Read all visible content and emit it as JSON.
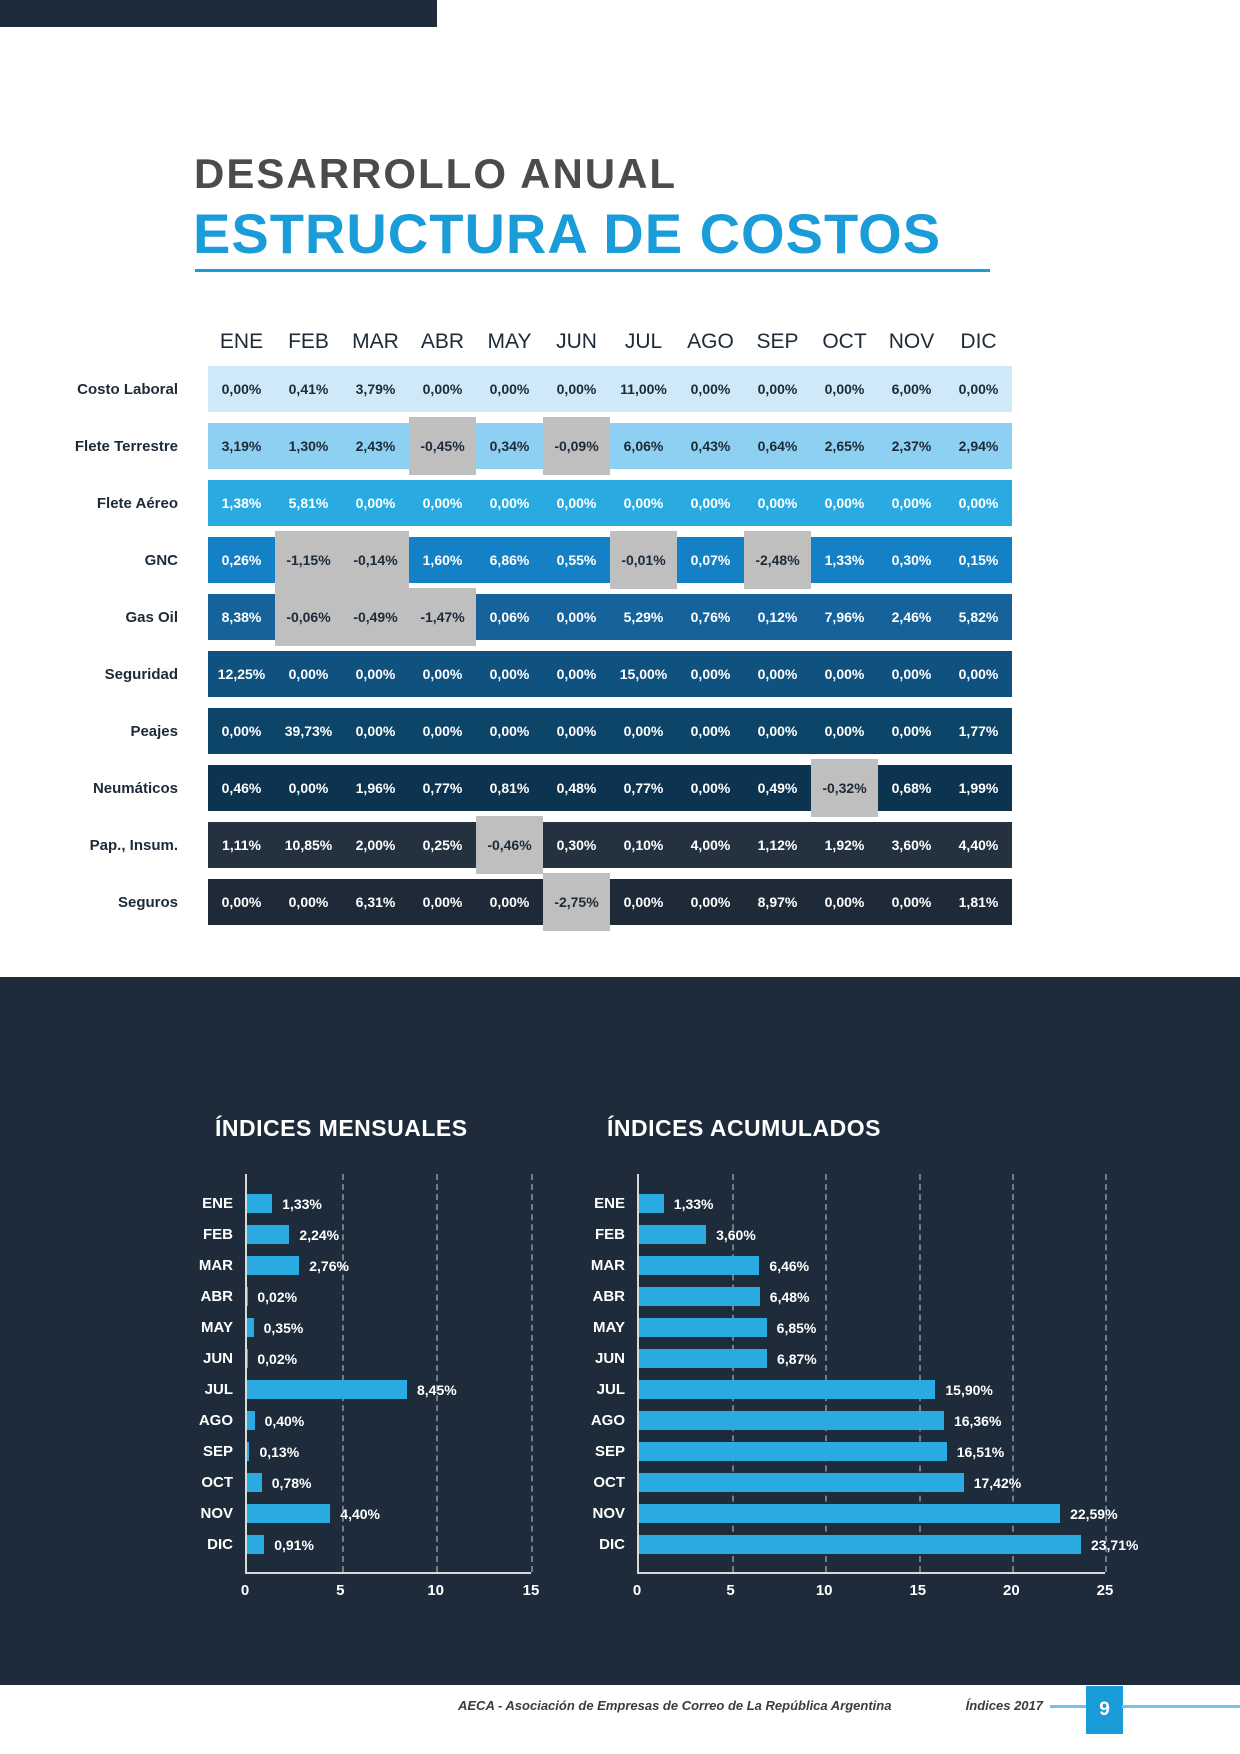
{
  "header": {
    "title_line1": "DESARROLLO ANUAL",
    "title_line2": "ESTRUCTURA DE COSTOS",
    "accent_color": "#1a9cd8",
    "title_color": "#4b4b4b"
  },
  "table": {
    "months": [
      "ENE",
      "FEB",
      "MAR",
      "ABR",
      "MAY",
      "JUN",
      "JUL",
      "AGO",
      "SEP",
      "OCT",
      "NOV",
      "DIC"
    ],
    "negative_cell_color": "#bfbfbf",
    "rows": [
      {
        "label": "Costo Laboral",
        "bg": "#cfe9f8",
        "text_color": "#1d2a38",
        "values": [
          "0,00%",
          "0,41%",
          "3,79%",
          "0,00%",
          "0,00%",
          "0,00%",
          "11,00%",
          "0,00%",
          "0,00%",
          "0,00%",
          "6,00%",
          "0,00%"
        ]
      },
      {
        "label": "Flete Terrestre",
        "bg": "#8dd0f1",
        "text_color": "#1d2a38",
        "values": [
          "3,19%",
          "1,30%",
          "2,43%",
          "-0,45%",
          "0,34%",
          "-0,09%",
          "6,06%",
          "0,43%",
          "0,64%",
          "2,65%",
          "2,37%",
          "2,94%"
        ]
      },
      {
        "label": "Flete Aéreo",
        "bg": "#29abe2",
        "text_color": "#ffffff",
        "values": [
          "1,38%",
          "5,81%",
          "0,00%",
          "0,00%",
          "0,00%",
          "0,00%",
          "0,00%",
          "0,00%",
          "0,00%",
          "0,00%",
          "0,00%",
          "0,00%"
        ]
      },
      {
        "label": "GNC",
        "bg": "#1480c6",
        "text_color": "#ffffff",
        "values": [
          "0,26%",
          "-1,15%",
          "-0,14%",
          "1,60%",
          "6,86%",
          "0,55%",
          "-0,01%",
          "0,07%",
          "-2,48%",
          "1,33%",
          "0,30%",
          "0,15%"
        ]
      },
      {
        "label": "Gas Oil",
        "bg": "#16639c",
        "text_color": "#ffffff",
        "values": [
          "8,38%",
          "-0,06%",
          "-0,49%",
          "-1,47%",
          "0,06%",
          "0,00%",
          "5,29%",
          "0,76%",
          "0,12%",
          "7,96%",
          "2,46%",
          "5,82%"
        ]
      },
      {
        "label": "Seguridad",
        "bg": "#0f5280",
        "text_color": "#ffffff",
        "values": [
          "12,25%",
          "0,00%",
          "0,00%",
          "0,00%",
          "0,00%",
          "0,00%",
          "15,00%",
          "0,00%",
          "0,00%",
          "0,00%",
          "0,00%",
          "0,00%"
        ]
      },
      {
        "label": "Peajes",
        "bg": "#0d4569",
        "text_color": "#ffffff",
        "values": [
          "0,00%",
          "39,73%",
          "0,00%",
          "0,00%",
          "0,00%",
          "0,00%",
          "0,00%",
          "0,00%",
          "0,00%",
          "0,00%",
          "0,00%",
          "1,77%"
        ]
      },
      {
        "label": "Neumáticos",
        "bg": "#0c3350",
        "text_color": "#ffffff",
        "values": [
          "0,46%",
          "0,00%",
          "1,96%",
          "0,77%",
          "0,81%",
          "0,48%",
          "0,77%",
          "0,00%",
          "0,49%",
          "-0,32%",
          "0,68%",
          "1,99%"
        ]
      },
      {
        "label": "Pap., Insum.",
        "bg": "#243240",
        "text_color": "#ffffff",
        "values": [
          "1,11%",
          "10,85%",
          "2,00%",
          "0,25%",
          "-0,46%",
          "0,30%",
          "0,10%",
          "4,00%",
          "1,12%",
          "1,92%",
          "3,60%",
          "4,40%"
        ]
      },
      {
        "label": "Seguros",
        "bg": "#1e2a38",
        "text_color": "#ffffff",
        "values": [
          "0,00%",
          "0,00%",
          "6,31%",
          "0,00%",
          "0,00%",
          "-2,75%",
          "0,00%",
          "0,00%",
          "8,97%",
          "0,00%",
          "0,00%",
          "1,81%"
        ]
      }
    ]
  },
  "chart_data": [
    {
      "type": "bar",
      "orientation": "horizontal",
      "title": "ÍNDICES MENSUALES",
      "categories": [
        "ENE",
        "FEB",
        "MAR",
        "ABR",
        "MAY",
        "JUN",
        "JUL",
        "AGO",
        "SEP",
        "OCT",
        "NOV",
        "DIC"
      ],
      "values": [
        1.33,
        2.24,
        2.76,
        0.02,
        0.35,
        0.02,
        8.45,
        0.4,
        0.13,
        0.78,
        4.4,
        0.91
      ],
      "labels": [
        "1,33%",
        "2,24%",
        "2,76%",
        "0,02%",
        "0,35%",
        "0,02%",
        "8,45%",
        "0,40%",
        "0,13%",
        "0,78%",
        "4,40%",
        "0,91%"
      ],
      "xlim": [
        0,
        15
      ],
      "xticks": [
        0,
        5,
        10,
        15
      ],
      "bar_color": "#29abe2",
      "grid": "dashed-vertical",
      "legend": "none"
    },
    {
      "type": "bar",
      "orientation": "horizontal",
      "title": "ÍNDICES ACUMULADOS",
      "categories": [
        "ENE",
        "FEB",
        "MAR",
        "ABR",
        "MAY",
        "JUN",
        "JUL",
        "AGO",
        "SEP",
        "OCT",
        "NOV",
        "DIC"
      ],
      "values": [
        1.33,
        3.6,
        6.46,
        6.48,
        6.85,
        6.87,
        15.9,
        16.36,
        16.51,
        17.42,
        22.59,
        23.71
      ],
      "labels": [
        "1,33%",
        "3,60%",
        "6,46%",
        "6,48%",
        "6,85%",
        "6,87%",
        "15,90%",
        "16,36%",
        "16,51%",
        "17,42%",
        "22,59%",
        "23,71%"
      ],
      "xlim": [
        0,
        25
      ],
      "xticks": [
        0,
        5,
        10,
        15,
        20,
        25
      ],
      "bar_color": "#29abe2",
      "grid": "dashed-vertical",
      "legend": "none"
    }
  ],
  "section": {
    "background": "#1d2b3a",
    "bar_color": "#29abe2"
  },
  "footer": {
    "left_text": "AECA - Asociación de Empresas de Correo de La República Argentina",
    "right_text": "Índices 2017",
    "page_number": "9"
  }
}
